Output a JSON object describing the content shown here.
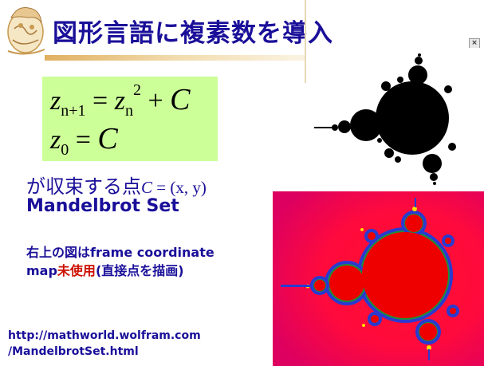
{
  "slide": {
    "title": "図形言語に複素数を導入",
    "close_icon_glyph": "×"
  },
  "formula": {
    "eq1_lhs_var": "z",
    "eq1_lhs_sub": "n+1",
    "eq1_eq": "=",
    "eq1_rhs_var": "z",
    "eq1_rhs_sub": "n",
    "eq1_rhs_sup": "2",
    "eq1_plus": "+",
    "eq1_const": "C",
    "eq2_var": "z",
    "eq2_sub": "0",
    "eq2_eq": "=",
    "eq2_const": "C"
  },
  "body": {
    "line1_text": "が収束する点",
    "line1_c": "C",
    "line1_rest": " = (x, y)",
    "line2": "Mandelbrot Set",
    "line3": "右上の図はframe coordinate",
    "line4_a": "map",
    "line4_highlight": "未使用",
    "line4_b": "(直接点を描画)",
    "url_line1": "http://mathworld.wolfram.com",
    "url_line2": "/MandelbrotSet.html"
  },
  "colors": {
    "title": "#1a0f99",
    "body_text": "#1a0f99",
    "highlight": "#cc1100",
    "formula_bg": "#cdff99",
    "mandel_fill": "#ee0000",
    "mandel_bg": "#ee0055"
  }
}
